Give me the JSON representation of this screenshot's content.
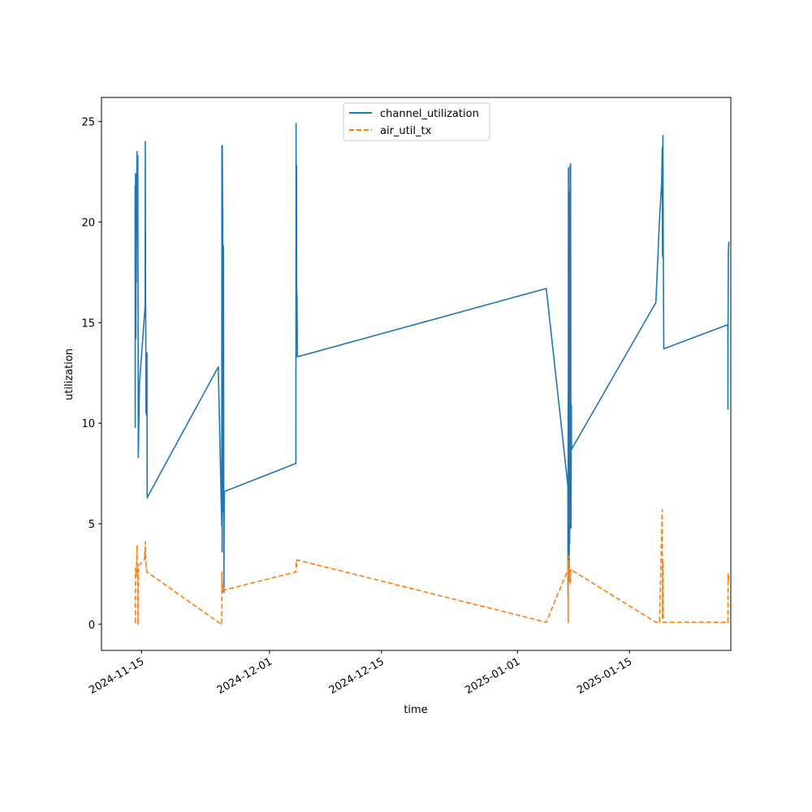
{
  "chart_data": {
    "type": "line",
    "xlabel": "time",
    "ylabel": "utilization",
    "ylim": [
      -1.3,
      26.2
    ],
    "xlim": [
      "2024-11-10",
      "2025-01-27 16:00"
    ],
    "x_ticks": [
      "2024-11-15",
      "2024-12-01",
      "2024-12-15",
      "2025-01-01",
      "2025-01-15"
    ],
    "y_ticks": [
      0,
      5,
      10,
      15,
      20,
      25
    ],
    "grid": false,
    "legend_position": "top-center",
    "series": [
      {
        "name": "channel_utilization",
        "color": "#1f77b4",
        "dash": "solid",
        "points": [
          [
            "2024-11-14 04:48",
            21.8
          ],
          [
            "2024-11-14 05:09",
            9.8
          ],
          [
            "2024-11-14 05:30",
            21.8
          ],
          [
            "2024-11-14 06:00",
            20.2
          ],
          [
            "2024-11-14 06:14",
            22.4
          ],
          [
            "2024-11-14 07:12",
            14.2
          ],
          [
            "2024-11-14 07:58",
            22.0
          ],
          [
            "2024-11-14 08:24",
            17.0
          ],
          [
            "2024-11-14 10:34",
            23.5
          ],
          [
            "2024-11-14 11:02",
            19.7
          ],
          [
            "2024-11-14 12:00",
            23.3
          ],
          [
            "2024-11-14 12:29",
            20.0
          ],
          [
            "2024-11-14 12:58",
            23.3
          ],
          [
            "2024-11-14 14:24",
            8.3
          ],
          [
            "2024-11-14 18:00",
            12.0
          ],
          [
            "2024-11-15 10:48",
            15.8
          ],
          [
            "2024-11-15 11:31",
            24.0
          ],
          [
            "2024-11-15 12:14",
            15.7
          ],
          [
            "2024-11-15 12:43",
            15.8
          ],
          [
            "2024-11-15 13:26",
            10.5
          ],
          [
            "2024-11-15 14:24",
            13.5
          ],
          [
            "2024-11-15 15:07",
            10.4
          ],
          [
            "2024-11-15 16:19",
            13.5
          ],
          [
            "2024-11-15 17:02",
            6.3
          ],
          [
            "2024-11-24 14:24",
            12.8
          ],
          [
            "2024-11-25 00:43",
            4.9
          ],
          [
            "2024-11-25 01:12",
            23.8
          ],
          [
            "2024-11-25 01:55",
            3.6
          ],
          [
            "2024-11-25 02:24",
            23.8
          ],
          [
            "2024-11-25 03:36",
            19.7
          ],
          [
            "2024-11-25 05:02",
            5.6
          ],
          [
            "2024-11-25 06:00",
            18.8
          ],
          [
            "2024-11-25 07:12",
            1.6
          ],
          [
            "2024-11-25 08:24",
            6.6
          ],
          [
            "2024-12-04 07:12",
            8.0
          ],
          [
            "2024-12-04 07:40",
            24.9
          ],
          [
            "2024-12-04 08:24",
            14.3
          ],
          [
            "2024-12-04 09:07",
            22.8
          ],
          [
            "2024-12-04 09:50",
            14.2
          ],
          [
            "2024-12-04 10:34",
            16.4
          ],
          [
            "2024-12-04 11:31",
            13.3
          ],
          [
            "2025-01-04 14:24",
            16.7
          ],
          [
            "2025-01-07 07:12",
            6.9
          ],
          [
            "2025-01-07 07:40",
            1.5
          ],
          [
            "2025-01-07 08:09",
            11.5
          ],
          [
            "2025-01-07 08:24",
            5.4
          ],
          [
            "2025-01-07 08:52",
            22.7
          ],
          [
            "2025-01-07 09:50",
            4.7
          ],
          [
            "2025-01-07 10:34",
            21.5
          ],
          [
            "2025-01-07 11:17",
            2.8
          ],
          [
            "2025-01-07 12:00",
            19.6
          ],
          [
            "2025-01-07 12:43",
            4.0
          ],
          [
            "2025-01-07 13:55",
            22.8
          ],
          [
            "2025-01-07 14:38",
            4.8
          ],
          [
            "2025-01-07 15:22",
            22.9
          ],
          [
            "2025-01-07 16:34",
            4.8
          ],
          [
            "2025-01-07 17:46",
            10.9
          ],
          [
            "2025-01-07 18:14",
            8.7
          ],
          [
            "2025-01-18 07:12",
            16.0
          ],
          [
            "2025-01-18 18:00",
            20.1
          ],
          [
            "2025-01-19 00:43",
            22.0
          ],
          [
            "2025-01-19 02:24",
            23.7
          ],
          [
            "2025-01-19 03:07",
            18.3
          ],
          [
            "2025-01-19 04:19",
            24.3
          ],
          [
            "2025-01-19 05:31",
            18.2
          ],
          [
            "2025-01-19 06:58",
            13.7
          ],
          [
            "2025-01-27 07:12",
            14.9
          ],
          [
            "2025-01-27 07:26",
            10.7
          ],
          [
            "2025-01-27 07:55",
            15.2
          ],
          [
            "2025-01-27 08:38",
            18.5
          ],
          [
            "2025-01-27 09:22",
            18.8
          ],
          [
            "2025-01-27 10:05",
            19.0
          ]
        ]
      },
      {
        "name": "air_util_tx",
        "color": "#ff7f0e",
        "dash": "dashed",
        "points": [
          [
            "2024-11-14 04:48",
            0.1
          ],
          [
            "2024-11-14 05:30",
            0.1
          ],
          [
            "2024-11-14 06:14",
            2.8
          ],
          [
            "2024-11-14 07:12",
            2.7
          ],
          [
            "2024-11-14 08:24",
            2.4
          ],
          [
            "2024-11-14 10:34",
            3.9
          ],
          [
            "2024-11-14 11:31",
            2.6
          ],
          [
            "2024-11-14 12:29",
            2.7
          ],
          [
            "2024-11-14 12:58",
            0.1
          ],
          [
            "2024-11-14 13:26",
            0.0
          ],
          [
            "2024-11-14 14:24",
            2.9
          ],
          [
            "2024-11-15 08:24",
            3.2
          ],
          [
            "2024-11-15 09:36",
            3.6
          ],
          [
            "2024-11-15 10:48",
            3.3
          ],
          [
            "2024-11-15 11:31",
            4.1
          ],
          [
            "2024-11-15 12:14",
            3.5
          ],
          [
            "2024-11-15 13:26",
            3.1
          ],
          [
            "2024-11-15 14:24",
            2.8
          ],
          [
            "2024-11-15 15:36",
            2.7
          ],
          [
            "2024-11-15 16:48",
            2.6
          ],
          [
            "2024-11-24 14:24",
            0.1
          ],
          [
            "2024-11-25 00:43",
            0.0
          ],
          [
            "2024-11-25 01:12",
            2.6
          ],
          [
            "2024-11-25 01:55",
            1.8
          ],
          [
            "2024-11-25 02:24",
            2.0
          ],
          [
            "2024-11-25 03:36",
            1.6
          ],
          [
            "2024-11-25 05:02",
            1.9
          ],
          [
            "2024-11-25 06:00",
            1.8
          ],
          [
            "2024-11-25 07:12",
            1.7
          ],
          [
            "2024-12-04 07:12",
            2.6
          ],
          [
            "2024-12-04 07:40",
            3.0
          ],
          [
            "2024-12-04 08:24",
            3.1
          ],
          [
            "2024-12-04 09:07",
            2.9
          ],
          [
            "2024-12-04 10:34",
            3.2
          ],
          [
            "2025-01-04 14:24",
            0.1
          ],
          [
            "2025-01-07 07:12",
            2.7
          ],
          [
            "2025-01-07 07:40",
            3.2
          ],
          [
            "2025-01-07 08:09",
            0.1
          ],
          [
            "2025-01-07 08:24",
            2.6
          ],
          [
            "2025-01-07 08:52",
            2.9
          ],
          [
            "2025-01-07 09:50",
            2.3
          ],
          [
            "2025-01-07 10:34",
            3.4
          ],
          [
            "2025-01-07 11:17",
            2.1
          ],
          [
            "2025-01-07 12:00",
            2.8
          ],
          [
            "2025-01-07 12:43",
            2.2
          ],
          [
            "2025-01-07 13:55",
            2.7
          ],
          [
            "2025-01-07 14:38",
            2.0
          ],
          [
            "2025-01-07 15:22",
            2.6
          ],
          [
            "2025-01-07 16:34",
            2.7
          ],
          [
            "2025-01-07 18:14",
            2.7
          ],
          [
            "2025-01-18 07:12",
            0.1
          ],
          [
            "2025-01-18 18:00",
            0.1
          ],
          [
            "2025-01-19 02:24",
            5.7
          ],
          [
            "2025-01-19 03:07",
            0.3
          ],
          [
            "2025-01-19 04:19",
            3.1
          ],
          [
            "2025-01-19 05:31",
            0.1
          ],
          [
            "2025-01-27 07:12",
            0.1
          ],
          [
            "2025-01-27 07:55",
            2.5
          ],
          [
            "2025-01-27 08:38",
            2.2
          ],
          [
            "2025-01-27 09:22",
            2.4
          ],
          [
            "2025-01-27 10:05",
            2.3
          ]
        ]
      }
    ]
  }
}
